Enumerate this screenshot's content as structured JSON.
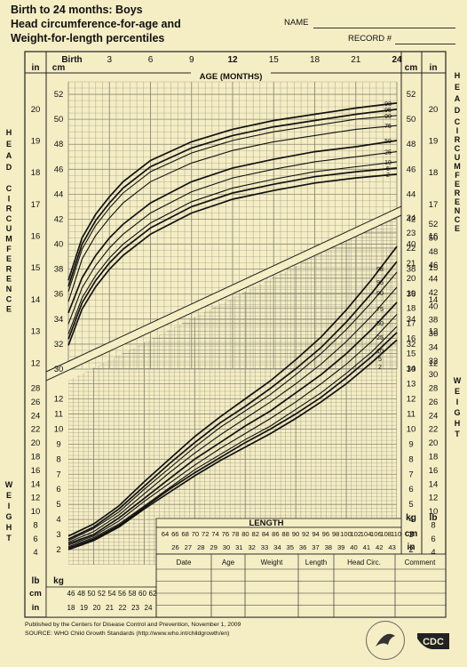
{
  "header": {
    "line1": "Birth to 24 months: Boys",
    "line2": "Head circumference-for-age and",
    "line3": "Weight-for-length percentiles",
    "name_label": "NAME",
    "record_label": "RECORD #"
  },
  "top_axis": {
    "birth_label": "Birth",
    "age_ticks": [
      "3",
      "6",
      "9",
      "12",
      "15",
      "18",
      "21",
      "24"
    ],
    "age_title": "AGE (MONTHS)",
    "unit_in": "in",
    "unit_cm": "cm"
  },
  "side_titles": {
    "head": "HEAD CIRCUMFERENCE",
    "weight": "WEIGHT"
  },
  "weight_units": {
    "lb": "lb",
    "kg": "kg"
  },
  "length_title": "LENGTH",
  "length_cm_ticks": [
    "64",
    "66",
    "68",
    "70",
    "72",
    "74",
    "76",
    "78",
    "80",
    "82",
    "84",
    "86",
    "88",
    "90",
    "92",
    "94",
    "96",
    "98",
    "100",
    "102",
    "104",
    "106",
    "108",
    "110"
  ],
  "length_in_ticks": [
    "26",
    "27",
    "28",
    "29",
    "30",
    "31",
    "32",
    "33",
    "34",
    "35",
    "36",
    "37",
    "38",
    "39",
    "40",
    "41",
    "42",
    "43"
  ],
  "bottom_length_cm_ticks": [
    "46",
    "48",
    "50",
    "52",
    "54",
    "56",
    "58",
    "60",
    "62"
  ],
  "bottom_length_in_ticks": [
    "18",
    "19",
    "20",
    "21",
    "22",
    "23",
    "24"
  ],
  "table": {
    "headers": [
      "Date",
      "Age",
      "Weight",
      "Length",
      "Head Circ.",
      "Comment"
    ]
  },
  "footer": {
    "line1": "Published by the Centers for Disease Control and Prevention, November 1, 2009",
    "line2": "SOURCE:  WHO Child Growth Standards (http://www.who.int/childgrowth/en)"
  },
  "logo_text": "CDC",
  "colors": {
    "background": "#f5edc4",
    "grid": "#7a7a6a",
    "curve": "#111111"
  },
  "chart_data": [
    {
      "type": "line",
      "xlabel": "AGE (MONTHS)",
      "ylabel_unit_left": "in",
      "ylabel_unit_right": "cm",
      "xlim": [
        0,
        24
      ],
      "ylim": [
        30,
        53
      ],
      "x_ticks": [
        "Birth",
        "3",
        "6",
        "9",
        "12",
        "15",
        "18",
        "21",
        "24"
      ],
      "y_ticks_cm": [
        "30",
        "32",
        "34",
        "36",
        "38",
        "40",
        "42",
        "44",
        "46",
        "48",
        "50",
        "52"
      ],
      "y_ticks_in": [
        "12",
        "13",
        "14",
        "15",
        "16",
        "17",
        "18",
        "19",
        "20"
      ],
      "x": [
        0,
        1,
        2,
        3,
        4,
        6,
        9,
        12,
        15,
        18,
        21,
        24
      ],
      "series": [
        {
          "name": "98",
          "values": [
            37.1,
            40.5,
            42.4,
            43.8,
            45.0,
            46.7,
            48.2,
            49.2,
            49.9,
            50.4,
            50.9,
            51.3
          ]
        },
        {
          "name": "95",
          "values": [
            36.6,
            40.0,
            41.9,
            43.3,
            44.5,
            46.2,
            47.7,
            48.7,
            49.4,
            49.9,
            50.4,
            50.8
          ]
        },
        {
          "name": "90",
          "values": [
            36.2,
            39.6,
            41.5,
            42.9,
            44.1,
            45.8,
            47.3,
            48.3,
            49.0,
            49.5,
            50.0,
            50.3
          ]
        },
        {
          "name": "75",
          "values": [
            35.4,
            38.8,
            40.7,
            42.1,
            43.3,
            45.0,
            46.5,
            47.5,
            48.2,
            48.7,
            49.2,
            49.5
          ]
        },
        {
          "name": "50",
          "values": [
            34.5,
            37.3,
            39.1,
            40.5,
            41.6,
            43.3,
            45.0,
            46.1,
            46.8,
            47.4,
            47.8,
            48.3
          ]
        },
        {
          "name": "25",
          "values": [
            33.6,
            36.5,
            38.3,
            39.7,
            40.8,
            42.5,
            44.2,
            45.3,
            46.0,
            46.6,
            47.0,
            47.4
          ]
        },
        {
          "name": "10",
          "values": [
            32.8,
            35.7,
            37.5,
            38.9,
            40.0,
            41.7,
            43.4,
            44.5,
            45.2,
            45.8,
            46.2,
            46.6
          ]
        },
        {
          "name": "5",
          "values": [
            32.4,
            35.3,
            37.1,
            38.5,
            39.6,
            41.3,
            43.0,
            44.1,
            44.8,
            45.4,
            45.8,
            46.1
          ]
        },
        {
          "name": "2",
          "values": [
            31.9,
            34.8,
            36.6,
            38.0,
            39.1,
            40.8,
            42.5,
            43.6,
            44.3,
            44.9,
            45.3,
            45.6
          ]
        }
      ]
    },
    {
      "type": "line",
      "xlabel": "LENGTH",
      "x_unit": "cm",
      "y_unit": "kg",
      "xlim": [
        45,
        110
      ],
      "ylim": [
        1,
        24
      ],
      "y_ticks_kg": [
        "2",
        "3",
        "4",
        "5",
        "6",
        "7",
        "8",
        "9",
        "10",
        "11",
        "12",
        "13",
        "14",
        "15",
        "16",
        "17",
        "18",
        "19",
        "20",
        "21",
        "22",
        "23",
        "24"
      ],
      "y_ticks_lb": [
        "4",
        "6",
        "8",
        "10",
        "12",
        "14",
        "16",
        "18",
        "20",
        "22",
        "24",
        "26",
        "28",
        "30",
        "32",
        "34",
        "36",
        "38",
        "40",
        "42",
        "44",
        "46",
        "48",
        "50",
        "52"
      ],
      "x": [
        45,
        50,
        55,
        60,
        65,
        70,
        75,
        80,
        85,
        90,
        95,
        100,
        105,
        110
      ],
      "series": [
        {
          "name": "98",
          "values": [
            2.9,
            3.7,
            4.9,
            6.5,
            8.0,
            9.5,
            10.8,
            12.0,
            13.2,
            14.6,
            16.1,
            17.9,
            19.9,
            22.1
          ]
        },
        {
          "name": "95",
          "values": [
            2.7,
            3.5,
            4.7,
            6.2,
            7.7,
            9.1,
            10.4,
            11.5,
            12.7,
            14.0,
            15.4,
            17.1,
            19.0,
            21.1
          ]
        },
        {
          "name": "90",
          "values": [
            2.6,
            3.4,
            4.5,
            6.0,
            7.4,
            8.8,
            10.1,
            11.2,
            12.3,
            13.6,
            15.0,
            16.6,
            18.4,
            20.4
          ]
        },
        {
          "name": "75",
          "values": [
            2.5,
            3.2,
            4.3,
            5.7,
            7.1,
            8.4,
            9.6,
            10.7,
            11.8,
            13.0,
            14.3,
            15.8,
            17.5,
            19.4
          ]
        },
        {
          "name": "50",
          "values": [
            2.4,
            3.0,
            4.1,
            5.4,
            6.7,
            8.0,
            9.1,
            10.2,
            11.2,
            12.4,
            13.6,
            15.0,
            16.6,
            18.4
          ]
        },
        {
          "name": "25",
          "values": [
            2.3,
            2.9,
            3.9,
            5.2,
            6.4,
            7.6,
            8.7,
            9.7,
            10.7,
            11.8,
            13.0,
            14.3,
            15.8,
            17.6
          ]
        },
        {
          "name": "10",
          "values": [
            2.2,
            2.8,
            3.7,
            4.9,
            6.1,
            7.3,
            8.3,
            9.3,
            10.2,
            11.3,
            12.4,
            13.7,
            15.1,
            16.8
          ]
        },
        {
          "name": "5",
          "values": [
            2.1,
            2.7,
            3.6,
            4.8,
            6.0,
            7.1,
            8.1,
            9.1,
            10.0,
            11.0,
            12.1,
            13.4,
            14.8,
            16.4
          ]
        },
        {
          "name": "2",
          "values": [
            2.0,
            2.6,
            3.5,
            4.7,
            5.8,
            6.9,
            7.9,
            8.8,
            9.7,
            10.7,
            11.8,
            13.0,
            14.4,
            15.9
          ]
        }
      ]
    }
  ]
}
